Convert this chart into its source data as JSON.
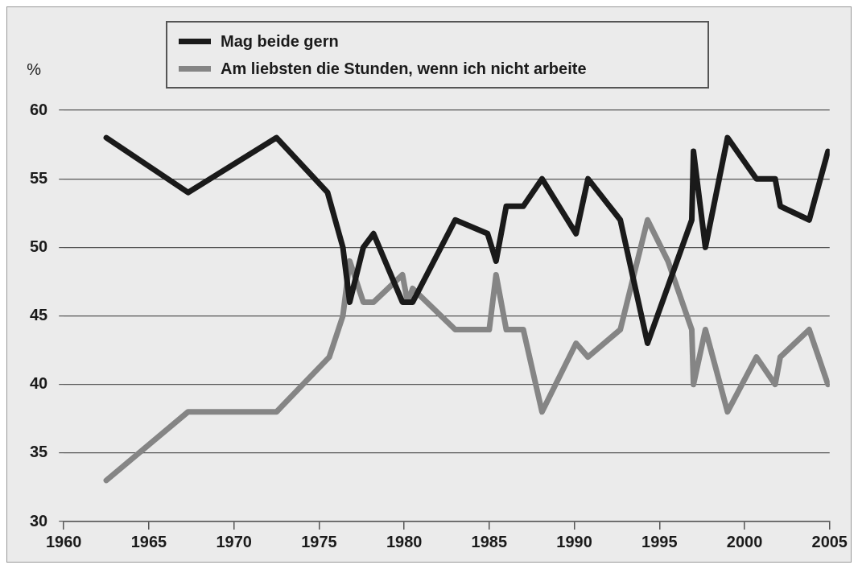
{
  "chart_data": {
    "type": "line",
    "ylabel": "%",
    "xlim": [
      1960,
      2005
    ],
    "xticks": [
      1960,
      1965,
      1970,
      1975,
      1980,
      1985,
      1990,
      1995,
      2000,
      2005
    ],
    "ylim": [
      30,
      60
    ],
    "yticks": [
      30,
      35,
      40,
      45,
      50,
      55,
      60
    ],
    "grid": "y",
    "legend": "top",
    "marker": "none",
    "line_style": "solid",
    "series": [
      {
        "name": "Mag beide gern",
        "color": "#1a1a1a",
        "x": [
          1962.5,
          1967.3,
          1972.5,
          1975.5,
          1976.4,
          1976.8,
          1977.6,
          1978.2,
          1979.9,
          1980.5,
          1983.0,
          1984.9,
          1985.4,
          1986.0,
          1987.0,
          1988.1,
          1990.1,
          1990.8,
          1992.7,
          1994.3,
          1996.9,
          1997.0,
          1997.7,
          1999.0,
          2000.7,
          2001.8,
          2002.1,
          2003.8,
          2004.9
        ],
        "values": [
          58,
          54,
          58,
          54,
          50,
          46,
          50,
          51,
          46,
          46,
          52,
          51,
          49,
          53,
          53,
          55,
          51,
          55,
          52,
          43,
          52,
          57,
          50,
          58,
          55,
          55,
          53,
          52,
          57
        ]
      },
      {
        "name": "Am liebsten die Stunden, wenn ich nicht arbeite",
        "color": "#858585",
        "x": [
          1962.5,
          1967.3,
          1972.5,
          1975.6,
          1976.4,
          1976.8,
          1977.6,
          1978.2,
          1979.9,
          1980.2,
          1980.5,
          1983.0,
          1985.0,
          1985.4,
          1986.0,
          1987.0,
          1988.1,
          1990.1,
          1990.8,
          1992.7,
          1994.3,
          1995.5,
          1996.9,
          1997.0,
          1997.7,
          1999.0,
          2000.7,
          2001.8,
          2002.1,
          2003.8,
          2004.9
        ],
        "values": [
          33,
          38,
          38,
          42,
          45,
          49,
          46,
          46,
          48,
          46,
          47,
          44,
          44,
          48,
          44,
          44,
          38,
          43,
          42,
          44,
          52,
          49,
          44,
          40,
          44,
          38,
          42,
          40,
          42,
          44,
          40
        ]
      }
    ]
  }
}
